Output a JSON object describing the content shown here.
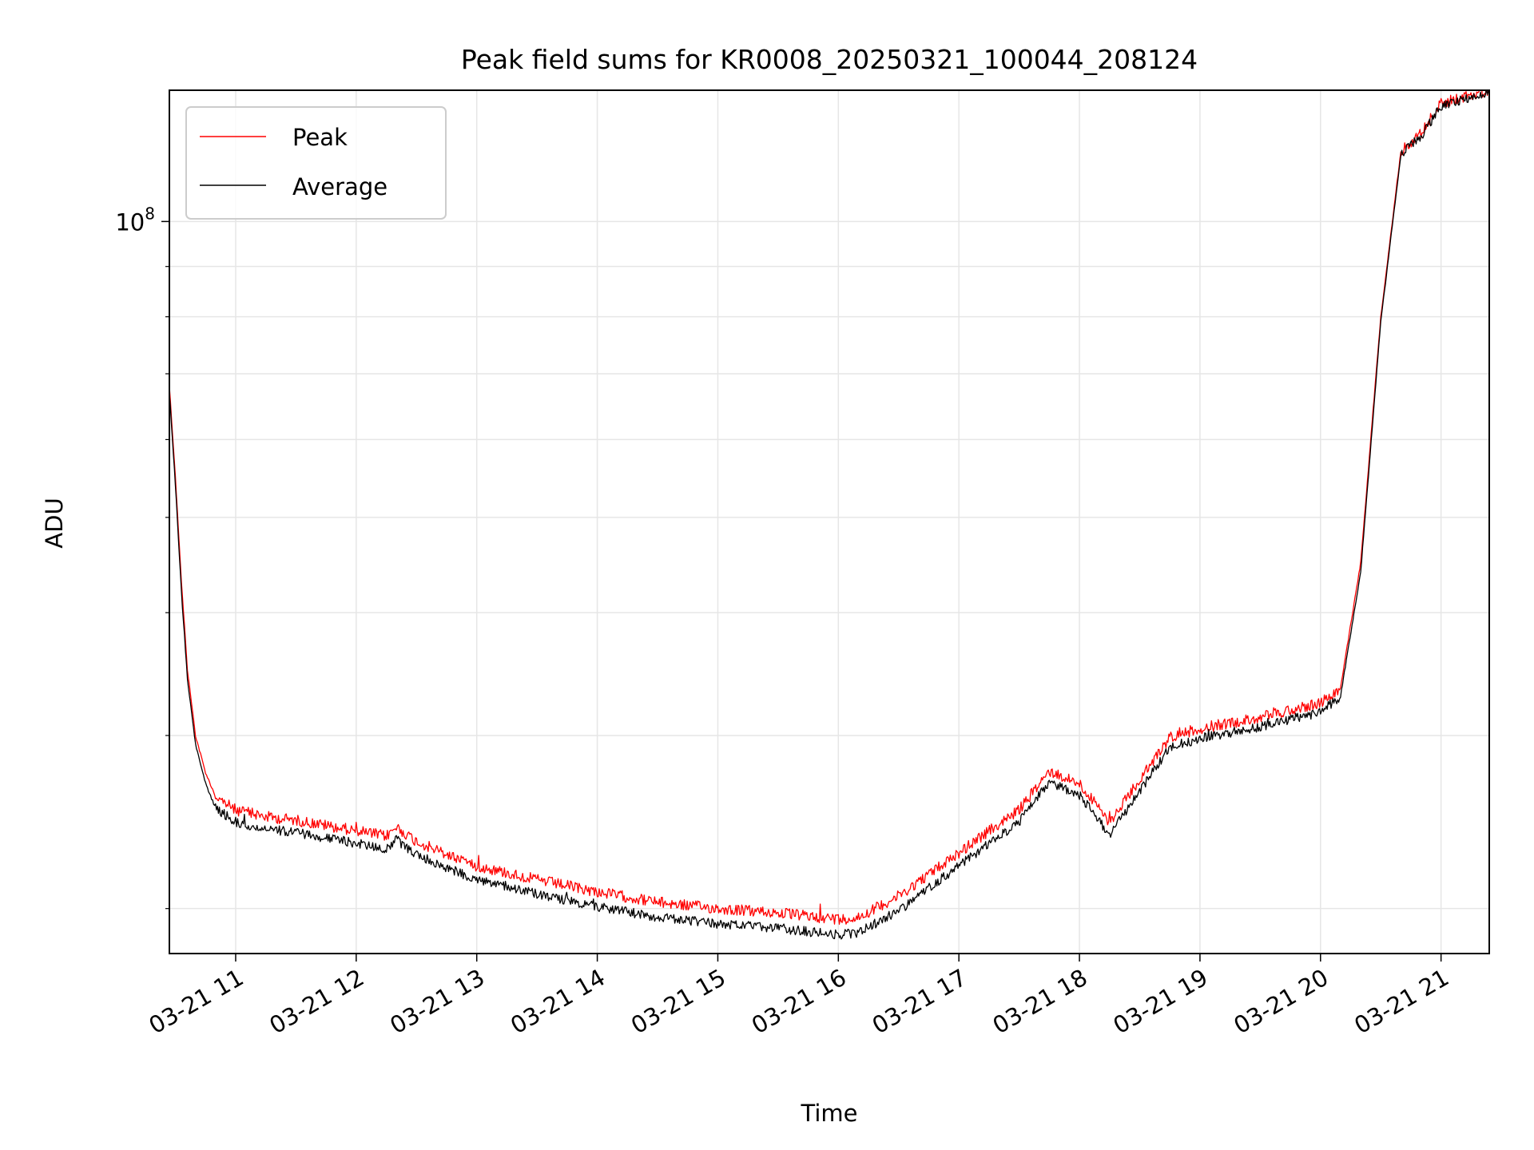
{
  "chart_data": {
    "type": "line",
    "title": "Peak field sums for KR0008_20250321_100044_208124",
    "xlabel": "Time",
    "ylabel": "ADU",
    "y_scale": "log",
    "y_major_tick_labels": [
      {
        "value": 100000000,
        "base": "10",
        "exp": "8"
      }
    ],
    "x_ticks": [
      {
        "t": "2025-03-21T11:00",
        "label": "03-21 11"
      },
      {
        "t": "2025-03-21T12:00",
        "label": "03-21 12"
      },
      {
        "t": "2025-03-21T13:00",
        "label": "03-21 13"
      },
      {
        "t": "2025-03-21T14:00",
        "label": "03-21 14"
      },
      {
        "t": "2025-03-21T15:00",
        "label": "03-21 15"
      },
      {
        "t": "2025-03-21T16:00",
        "label": "03-21 16"
      },
      {
        "t": "2025-03-21T17:00",
        "label": "03-21 17"
      },
      {
        "t": "2025-03-21T18:00",
        "label": "03-21 18"
      },
      {
        "t": "2025-03-21T19:00",
        "label": "03-21 19"
      },
      {
        "t": "2025-03-21T20:00",
        "label": "03-21 20"
      },
      {
        "t": "2025-03-21T21:00",
        "label": "03-21 21"
      }
    ],
    "xlim": [
      "2025-03-21T10:27",
      "2025-03-21T21:24"
    ],
    "ylim": [
      18000000,
      136000000
    ],
    "grid": true,
    "legend": "upper-left",
    "series": [
      {
        "name": "Peak",
        "color": "#ff0000",
        "points": [
          [
            "2025-03-21T10:27",
            68000000
          ],
          [
            "2025-03-21T10:30",
            55000000
          ],
          [
            "2025-03-21T10:33",
            43000000
          ],
          [
            "2025-03-21T10:36",
            35000000
          ],
          [
            "2025-03-21T10:40",
            30000000
          ],
          [
            "2025-03-21T10:45",
            27500000
          ],
          [
            "2025-03-21T10:50",
            26000000
          ],
          [
            "2025-03-21T11:00",
            25200000
          ],
          [
            "2025-03-21T11:15",
            24800000
          ],
          [
            "2025-03-21T11:30",
            24600000
          ],
          [
            "2025-03-21T11:45",
            24300000
          ],
          [
            "2025-03-21T12:00",
            24000000
          ],
          [
            "2025-03-21T12:15",
            23700000
          ],
          [
            "2025-03-21T12:20",
            24200000
          ],
          [
            "2025-03-21T12:30",
            23400000
          ],
          [
            "2025-03-21T12:45",
            22700000
          ],
          [
            "2025-03-21T13:00",
            22100000
          ],
          [
            "2025-03-21T13:30",
            21400000
          ],
          [
            "2025-03-21T14:00",
            20800000
          ],
          [
            "2025-03-21T14:30",
            20300000
          ],
          [
            "2025-03-21T15:00",
            20000000
          ],
          [
            "2025-03-21T15:30",
            19800000
          ],
          [
            "2025-03-21T16:00",
            19500000
          ],
          [
            "2025-03-21T16:10",
            19600000
          ],
          [
            "2025-03-21T16:30",
            20600000
          ],
          [
            "2025-03-21T17:00",
            22800000
          ],
          [
            "2025-03-21T17:30",
            25200000
          ],
          [
            "2025-03-21T17:45",
            27600000
          ],
          [
            "2025-03-21T18:00",
            26800000
          ],
          [
            "2025-03-21T18:15",
            24500000
          ],
          [
            "2025-03-21T18:30",
            27000000
          ],
          [
            "2025-03-21T18:45",
            29900000
          ],
          [
            "2025-03-21T19:00",
            30500000
          ],
          [
            "2025-03-21T19:30",
            31300000
          ],
          [
            "2025-03-21T20:00",
            32400000
          ],
          [
            "2025-03-21T20:10",
            33600000
          ],
          [
            "2025-03-21T20:20",
            45000000
          ],
          [
            "2025-03-21T20:30",
            80000000
          ],
          [
            "2025-03-21T20:40",
            118000000
          ],
          [
            "2025-03-21T20:50",
            123000000
          ],
          [
            "2025-03-21T21:00",
            132000000
          ],
          [
            "2025-03-21T21:24",
            136000000
          ]
        ]
      },
      {
        "name": "Average",
        "color": "#000000",
        "points": [
          [
            "2025-03-21T10:27",
            67000000
          ],
          [
            "2025-03-21T10:30",
            54000000
          ],
          [
            "2025-03-21T10:33",
            42000000
          ],
          [
            "2025-03-21T10:36",
            34200000
          ],
          [
            "2025-03-21T10:40",
            29400000
          ],
          [
            "2025-03-21T10:45",
            26800000
          ],
          [
            "2025-03-21T10:50",
            25300000
          ],
          [
            "2025-03-21T11:00",
            24500000
          ],
          [
            "2025-03-21T11:15",
            24100000
          ],
          [
            "2025-03-21T11:30",
            23900000
          ],
          [
            "2025-03-21T11:45",
            23600000
          ],
          [
            "2025-03-21T12:00",
            23300000
          ],
          [
            "2025-03-21T12:15",
            23000000
          ],
          [
            "2025-03-21T12:20",
            23500000
          ],
          [
            "2025-03-21T12:30",
            22700000
          ],
          [
            "2025-03-21T12:45",
            22000000
          ],
          [
            "2025-03-21T13:00",
            21400000
          ],
          [
            "2025-03-21T13:30",
            20700000
          ],
          [
            "2025-03-21T14:00",
            20100000
          ],
          [
            "2025-03-21T14:30",
            19600000
          ],
          [
            "2025-03-21T15:00",
            19300000
          ],
          [
            "2025-03-21T15:30",
            19100000
          ],
          [
            "2025-03-21T16:00",
            18800000
          ],
          [
            "2025-03-21T16:10",
            18900000
          ],
          [
            "2025-03-21T16:30",
            19900000
          ],
          [
            "2025-03-21T17:00",
            22100000
          ],
          [
            "2025-03-21T17:30",
            24500000
          ],
          [
            "2025-03-21T17:45",
            26900000
          ],
          [
            "2025-03-21T18:00",
            26100000
          ],
          [
            "2025-03-21T18:15",
            23800000
          ],
          [
            "2025-03-21T18:30",
            26300000
          ],
          [
            "2025-03-21T18:45",
            29200000
          ],
          [
            "2025-03-21T19:00",
            29800000
          ],
          [
            "2025-03-21T19:30",
            30600000
          ],
          [
            "2025-03-21T20:00",
            31700000
          ],
          [
            "2025-03-21T20:10",
            32900000
          ],
          [
            "2025-03-21T20:20",
            44000000
          ],
          [
            "2025-03-21T20:30",
            79000000
          ],
          [
            "2025-03-21T20:40",
            117000000
          ],
          [
            "2025-03-21T20:50",
            122000000
          ],
          [
            "2025-03-21T21:00",
            131000000
          ],
          [
            "2025-03-21T21:24",
            135500000
          ]
        ]
      }
    ]
  }
}
